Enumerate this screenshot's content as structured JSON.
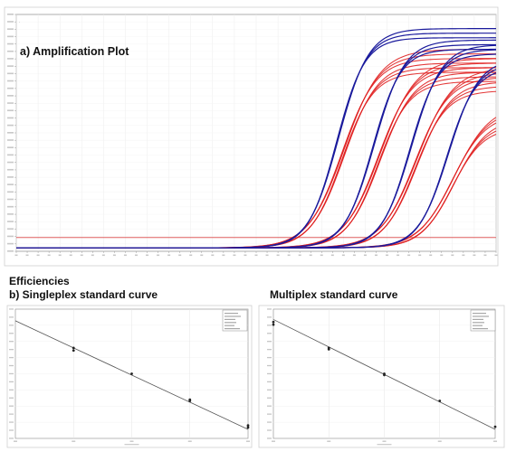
{
  "figure": {
    "efficiencies_label": "Efficiencies"
  },
  "chart_data": [
    {
      "type": "line",
      "title": "a) Amplification Plot",
      "xlabel": "",
      "ylabel": "",
      "xlim": [
        1,
        45
      ],
      "ylim": [
        0,
        1
      ],
      "threshold": 0.06,
      "colors": {
        "probe1": "#1a1a9c",
        "probe2": "#e02020",
        "threshold": "#e06060"
      },
      "dilution_groups": [
        {
          "name": "",
          "ct": 30.5,
          "blue_plateau": [
            0.93,
            0.95,
            0.97
          ],
          "red_plateau": [
            0.78,
            0.8,
            0.82,
            0.84,
            0.86,
            0.88
          ]
        },
        {
          "name": "",
          "ct": 33.8,
          "blue_plateau": [
            0.88,
            0.9,
            0.92
          ],
          "red_plateau": [
            0.74,
            0.76,
            0.78,
            0.8,
            0.82,
            0.84
          ]
        },
        {
          "name": "",
          "ct": 37.2,
          "blue_plateau": [
            0.86,
            0.88,
            0.9
          ],
          "red_plateau": [
            0.7,
            0.72,
            0.74,
            0.76,
            0.78,
            0.8
          ]
        },
        {
          "name": "",
          "ct": 40.6,
          "blue_plateau": [
            0.8,
            0.82,
            0.84
          ],
          "red_plateau": [
            0.54,
            0.56,
            0.58,
            0.6,
            0.62,
            0.64
          ]
        }
      ]
    },
    {
      "type": "scatter",
      "title": "b) Singleplex standard curve",
      "xlabel": "",
      "ylabel": "",
      "x_log": true,
      "xlim": [
        0,
        4
      ],
      "ylim": [
        0,
        1
      ],
      "points": [
        {
          "x": 1,
          "y": 0.7
        },
        {
          "x": 1,
          "y": 0.68
        },
        {
          "x": 2,
          "y": 0.5
        },
        {
          "x": 3,
          "y": 0.3
        },
        {
          "x": 3,
          "y": 0.29
        },
        {
          "x": 4,
          "y": 0.1
        },
        {
          "x": 4,
          "y": 0.085
        }
      ],
      "fit": [
        [
          0,
          0.91
        ],
        [
          4,
          0.07
        ]
      ]
    },
    {
      "type": "scatter",
      "title": "Multiplex standard curve",
      "xlabel": "",
      "ylabel": "",
      "x_log": true,
      "xlim": [
        0,
        4
      ],
      "ylim": [
        0,
        1
      ],
      "points": [
        {
          "x": 0,
          "y": 0.9
        },
        {
          "x": 0,
          "y": 0.88
        },
        {
          "x": 1,
          "y": 0.7
        },
        {
          "x": 1,
          "y": 0.69
        },
        {
          "x": 2,
          "y": 0.5
        },
        {
          "x": 2,
          "y": 0.49
        },
        {
          "x": 3,
          "y": 0.29
        },
        {
          "x": 4,
          "y": 0.09
        }
      ],
      "fit": [
        [
          0,
          0.92
        ],
        [
          4,
          0.07
        ]
      ]
    }
  ]
}
